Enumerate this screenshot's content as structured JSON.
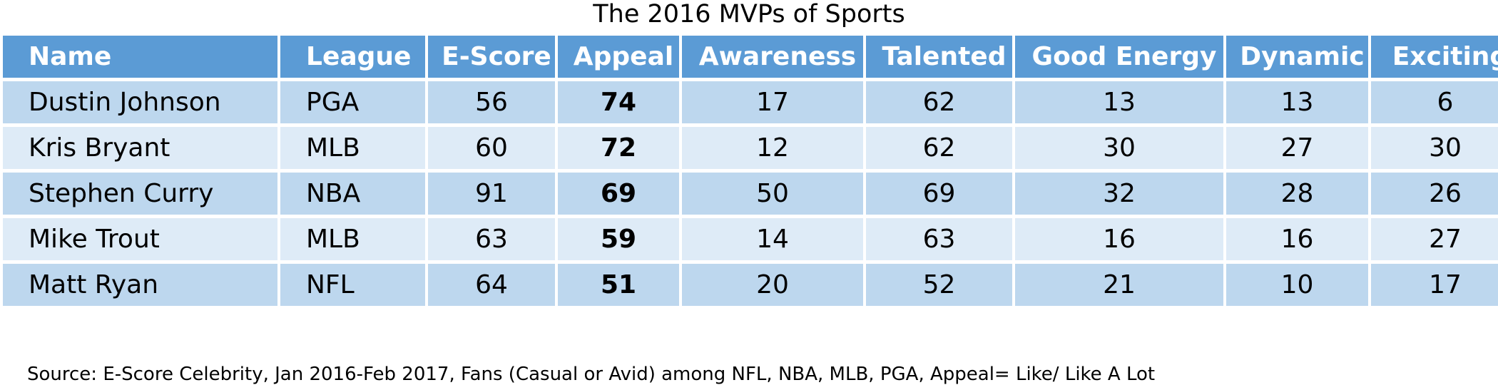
{
  "title": "The 2016 MVPs of Sports",
  "table": {
    "columns": [
      "Name",
      "League",
      "E-Score",
      "Appeal",
      "Awareness",
      "Talented",
      "Good Energy",
      "Dynamic",
      "Exciting"
    ],
    "rows": [
      [
        "Dustin Johnson",
        "PGA",
        56,
        74,
        17,
        62,
        13,
        13,
        6
      ],
      [
        "Kris Bryant",
        "MLB",
        60,
        72,
        12,
        62,
        30,
        27,
        30
      ],
      [
        "Stephen Curry",
        "NBA",
        91,
        69,
        50,
        69,
        32,
        28,
        26
      ],
      [
        "Mike Trout",
        "MLB",
        63,
        59,
        14,
        63,
        16,
        16,
        27
      ],
      [
        "Matt Ryan",
        "NFL",
        64,
        51,
        20,
        52,
        21,
        10,
        17
      ]
    ]
  },
  "source": "Source: E-Score Celebrity, Jan 2016-Feb 2017, Fans (Casual or Avid) among NFL, NBA, MLB, PGA, Appeal= Like/ Like A Lot"
}
